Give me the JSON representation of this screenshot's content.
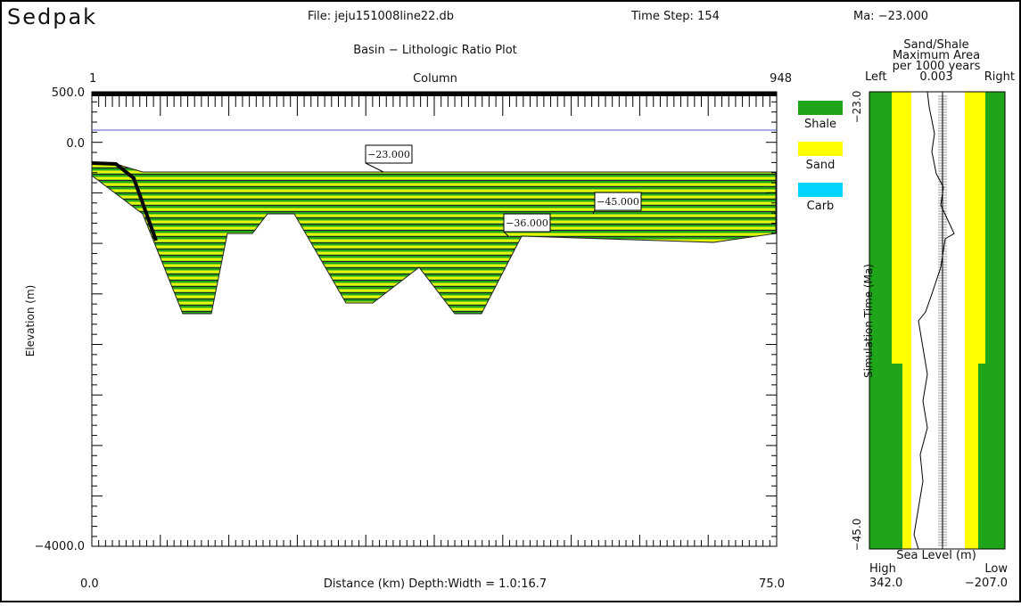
{
  "header": {
    "app": "Sedpak",
    "file": "File: jeju151008line22.db",
    "time_step": "Time Step: 154",
    "ma": "Ma: −23.000"
  },
  "main_plot": {
    "title": "Basin − Lithologic Ratio Plot",
    "column_axis": {
      "label": "Column",
      "start": "1",
      "end": "948"
    },
    "y_axis": {
      "label": "Elevation (m)",
      "ticks": [
        "500.0",
        "0.0",
        "−4000.0"
      ]
    },
    "x_axis": {
      "start": "0.0",
      "label": "Distance (km)   Depth:Width = 1.0:16.7",
      "end": "75.0"
    },
    "annotations": [
      "−23.000",
      "−36.000",
      "−45.000"
    ]
  },
  "legend": [
    {
      "label": "Shale",
      "color": "#1fa51a"
    },
    {
      "label": "Sand",
      "color": "#ffff00"
    },
    {
      "label": "Carb",
      "color": "#00d4ff"
    }
  ],
  "side_panel": {
    "title": [
      "Sand/Shale",
      "Maximum Area",
      "per 1000 years"
    ],
    "left": "Left",
    "value": "0.003",
    "right": "Right",
    "y_axis_label": "Simulation Time (Ma)",
    "y_top": "−23.0",
    "y_bottom": "−45.0",
    "bottom_label": "Sea Level (m)",
    "high": "High",
    "low": "Low",
    "high_value": "342.0",
    "low_value": "−207.0"
  }
}
